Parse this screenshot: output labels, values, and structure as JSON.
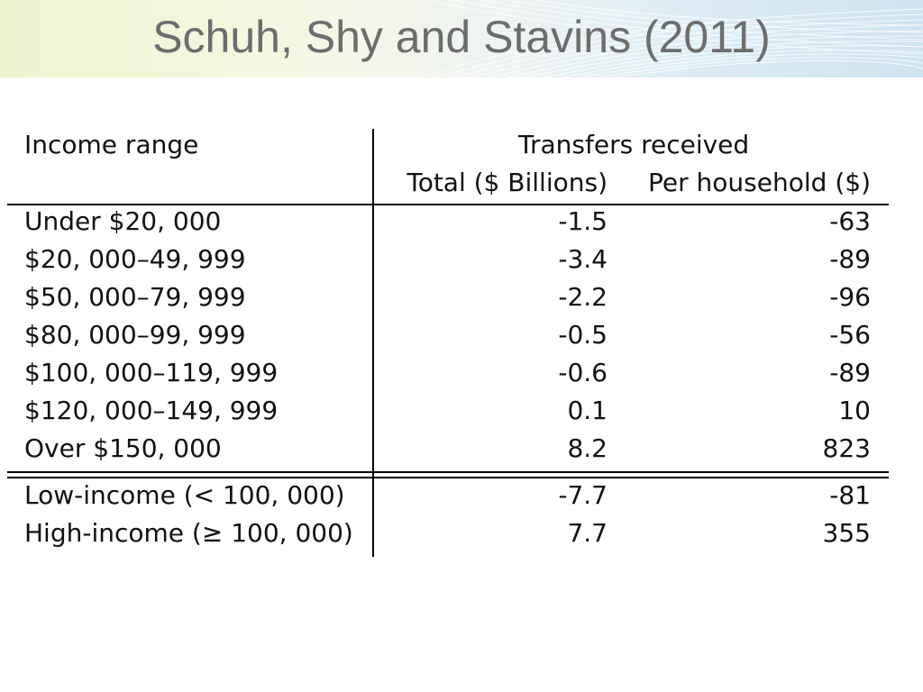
{
  "slide": {
    "title": "Schuh, Shy and Stavins (2011)"
  },
  "table": {
    "header_left": "Income range",
    "group_header": "Transfers received",
    "col_total": "Total ($ Billions)",
    "col_per_household": "Per household ($)",
    "rows": [
      {
        "range": "Under $20, 000",
        "total": "-1.5",
        "per_household": "-63"
      },
      {
        "range": "$20, 000–49, 999",
        "total": "-3.4",
        "per_household": "-89"
      },
      {
        "range": "$50, 000–79, 999",
        "total": "-2.2",
        "per_household": "-96"
      },
      {
        "range": "$80, 000–99, 999",
        "total": "-0.5",
        "per_household": "-56"
      },
      {
        "range": "$100, 000–119, 999",
        "total": "-0.6",
        "per_household": "-89"
      },
      {
        "range": "$120, 000–149, 999",
        "total": "0.1",
        "per_household": "10"
      },
      {
        "range": "Over $150, 000",
        "total": "8.2",
        "per_household": "823"
      }
    ],
    "summary_rows": [
      {
        "range": "Low-income (< 100, 000)",
        "total": "-7.7",
        "per_household": "-81"
      },
      {
        "range": "High-income (≥ 100, 000)",
        "total": "7.7",
        "per_household": "355"
      }
    ]
  }
}
